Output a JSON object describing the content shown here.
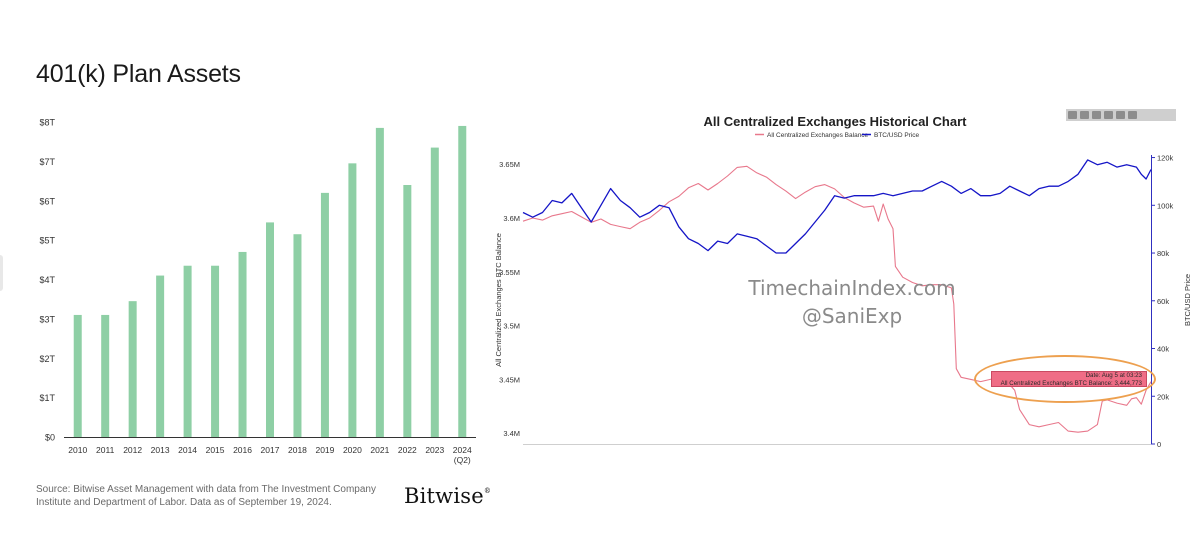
{
  "left": {
    "title": "401(k) Plan Assets",
    "source_note": "Source: Bitwise Asset Management with data from The Investment Company Institute and Department of Labor. Data as of September 19, 2024.",
    "brand": "Bitwise",
    "brand_mark": "®",
    "bar_color": "#8ecfa5",
    "chart_data": {
      "type": "bar",
      "title": "401(k) Plan Assets",
      "categories": [
        "2010",
        "2011",
        "2012",
        "2013",
        "2014",
        "2015",
        "2016",
        "2017",
        "2018",
        "2019",
        "2020",
        "2021",
        "2022",
        "2023",
        "2024"
      ],
      "category_sublabels": {
        "2024": "(Q2)"
      },
      "values": [
        3.1,
        3.1,
        3.45,
        4.1,
        4.35,
        4.35,
        4.7,
        5.45,
        5.15,
        6.2,
        6.95,
        7.85,
        6.4,
        7.35,
        7.9
      ],
      "y_ticks": [
        "$0",
        "$1T",
        "$2T",
        "$3T",
        "$4T",
        "$5T",
        "$6T",
        "$7T",
        "$8T"
      ],
      "ylim": [
        0,
        8
      ],
      "grid": false
    }
  },
  "right": {
    "toolbar_icons": [
      "zoom-in-icon",
      "zoom-out-icon",
      "search-icon",
      "pan-icon",
      "home-icon",
      "menu-icon"
    ],
    "watermark_lines": [
      "TimechainIndex.com",
      "@SaniExp"
    ],
    "tooltip": {
      "line1": "Date: Aug 5 at 03:23",
      "line2": "All Centralized Exchanges BTC Balance: 3,444,773"
    },
    "chart_data": {
      "type": "line",
      "title": "All Centralized Exchanges Historical Chart",
      "legend": [
        "All Centralized Exchanges Balance",
        "BTC/USD Price"
      ],
      "legend_placement": "top-center",
      "ylabel_left": "All Centralized Exchanges BTC Balance",
      "ylabel_right": "BTC/USD Price",
      "y_left_ticks": [
        "3.4M",
        "3.45M",
        "3.5M",
        "3.55M",
        "3.6M",
        "3.65M"
      ],
      "ylim_left": [
        3.39,
        3.665
      ],
      "y_right_ticks": [
        "0",
        "20k",
        "40k",
        "60k",
        "80k",
        "100k",
        "120k"
      ],
      "ylim_right": [
        0,
        124
      ],
      "grid": false,
      "series": [
        {
          "name": "All Centralized Exchanges Balance",
          "color": "#e8788c",
          "points": [
            [
              0,
              3.597
            ],
            [
              2,
              3.6
            ],
            [
              4,
              3.598
            ],
            [
              6,
              3.602
            ],
            [
              8,
              3.604
            ],
            [
              10,
              3.606
            ],
            [
              12,
              3.601
            ],
            [
              14,
              3.596
            ],
            [
              16,
              3.599
            ],
            [
              18,
              3.594
            ],
            [
              20,
              3.592
            ],
            [
              22,
              3.59
            ],
            [
              24,
              3.596
            ],
            [
              26,
              3.6
            ],
            [
              28,
              3.607
            ],
            [
              30,
              3.615
            ],
            [
              32,
              3.62
            ],
            [
              34,
              3.628
            ],
            [
              36,
              3.632
            ],
            [
              38,
              3.626
            ],
            [
              40,
              3.632
            ],
            [
              42,
              3.639
            ],
            [
              44,
              3.647
            ],
            [
              46,
              3.648
            ],
            [
              48,
              3.642
            ],
            [
              50,
              3.638
            ],
            [
              52,
              3.631
            ],
            [
              54,
              3.625
            ],
            [
              56,
              3.618
            ],
            [
              58,
              3.624
            ],
            [
              60,
              3.629
            ],
            [
              62,
              3.631
            ],
            [
              64,
              3.627
            ],
            [
              66,
              3.619
            ],
            [
              68,
              3.614
            ],
            [
              70,
              3.61
            ],
            [
              72,
              3.611
            ],
            [
              73,
              3.597
            ],
            [
              74,
              3.613
            ],
            [
              75,
              3.599
            ],
            [
              76,
              3.59
            ],
            [
              76.5,
              3.555
            ],
            [
              78,
              3.545
            ],
            [
              80,
              3.54
            ],
            [
              82,
              3.537
            ],
            [
              84,
              3.538
            ],
            [
              86,
              3.538
            ],
            [
              88,
              3.535
            ],
            [
              88.5,
              3.52
            ],
            [
              89,
              3.46
            ],
            [
              90,
              3.452
            ],
            [
              92,
              3.45
            ],
            [
              94,
              3.448
            ],
            [
              96,
              3.45
            ],
            [
              97,
              3.451
            ],
            [
              98,
              3.445
            ],
            [
              99,
              3.445
            ],
            [
              100,
              3.445
            ],
            [
              101,
              3.44
            ],
            [
              102,
              3.422
            ],
            [
              104,
              3.408
            ],
            [
              106,
              3.406
            ],
            [
              108,
              3.408
            ],
            [
              110,
              3.41
            ],
            [
              112,
              3.402
            ],
            [
              114,
              3.401
            ],
            [
              116,
              3.402
            ],
            [
              118,
              3.408
            ],
            [
              119,
              3.43
            ],
            [
              120,
              3.431
            ],
            [
              122,
              3.428
            ],
            [
              124,
              3.426
            ],
            [
              125,
              3.432
            ],
            [
              126,
              3.433
            ],
            [
              127,
              3.427
            ],
            [
              128,
              3.44
            ],
            [
              129,
              3.448
            ]
          ]
        },
        {
          "name": "BTC/USD Price",
          "color": "#1515c7",
          "points": [
            [
              0,
              97
            ],
            [
              2,
              95
            ],
            [
              4,
              97
            ],
            [
              6,
              102
            ],
            [
              8,
              101
            ],
            [
              10,
              105
            ],
            [
              12,
              99
            ],
            [
              14,
              93
            ],
            [
              16,
              100
            ],
            [
              18,
              107
            ],
            [
              20,
              102
            ],
            [
              22,
              99
            ],
            [
              24,
              95
            ],
            [
              26,
              97
            ],
            [
              28,
              100
            ],
            [
              30,
              99
            ],
            [
              32,
              91
            ],
            [
              34,
              86
            ],
            [
              36,
              84
            ],
            [
              38,
              81
            ],
            [
              40,
              85
            ],
            [
              42,
              84
            ],
            [
              44,
              88
            ],
            [
              46,
              87
            ],
            [
              48,
              86
            ],
            [
              50,
              83
            ],
            [
              52,
              80
            ],
            [
              54,
              80
            ],
            [
              56,
              84
            ],
            [
              58,
              88
            ],
            [
              60,
              93
            ],
            [
              62,
              98
            ],
            [
              64,
              104
            ],
            [
              66,
              103
            ],
            [
              68,
              104
            ],
            [
              70,
              104
            ],
            [
              72,
              104
            ],
            [
              74,
              105
            ],
            [
              76,
              104
            ],
            [
              78,
              105
            ],
            [
              80,
              106
            ],
            [
              82,
              106
            ],
            [
              84,
              108
            ],
            [
              86,
              110
            ],
            [
              88,
              108
            ],
            [
              90,
              105
            ],
            [
              92,
              107
            ],
            [
              94,
              104
            ],
            [
              96,
              104
            ],
            [
              98,
              105
            ],
            [
              100,
              108
            ],
            [
              102,
              106
            ],
            [
              104,
              104
            ],
            [
              106,
              107
            ],
            [
              108,
              108
            ],
            [
              110,
              108
            ],
            [
              112,
              110
            ],
            [
              114,
              113
            ],
            [
              116,
              119
            ],
            [
              118,
              117
            ],
            [
              120,
              118
            ],
            [
              122,
              116
            ],
            [
              124,
              117
            ],
            [
              126,
              116
            ],
            [
              127,
              113
            ],
            [
              128,
              111
            ],
            [
              129,
              115
            ]
          ]
        }
      ]
    }
  }
}
